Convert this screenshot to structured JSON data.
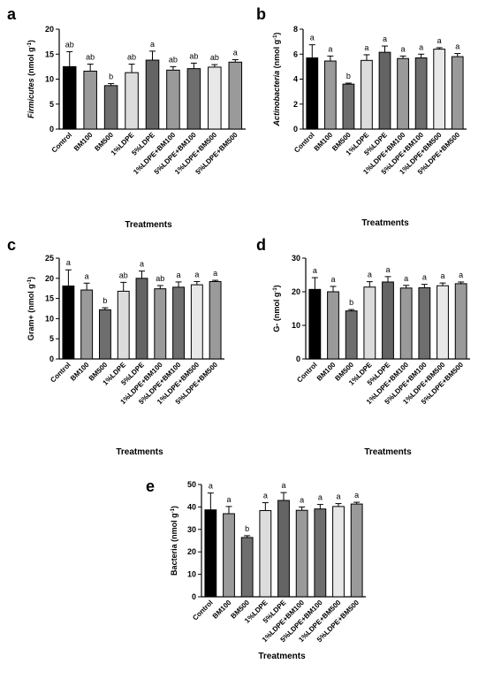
{
  "categories": [
    "Control",
    "BM100",
    "BM500",
    "1%LDPE",
    "5%LDPE",
    "1%LDPE+BM100",
    "5%LDPE+BM100",
    "1%LDPE+BM500",
    "5%LDPE+BM500"
  ],
  "bar_colors": [
    "#000000",
    "#9a9a9a",
    "#6e6e6e",
    "#dcdcdc",
    "#646464",
    "#9a9a9a",
    "#6e6e6e",
    "#e8e8e8",
    "#9a9a9a"
  ],
  "chart_data": [
    {
      "type": "bar",
      "panel": "a",
      "ylabel_italic": "Firmicutes",
      "ylabel_rest": " (nmol g",
      "ylabel_sup": "-1",
      "ylabel_end": ")",
      "xlabel": "Treatments",
      "ylim": [
        0,
        20
      ],
      "yticks": [
        0,
        5,
        10,
        15,
        20
      ],
      "values": [
        12.5,
        11.6,
        8.7,
        11.3,
        13.8,
        11.8,
        12.1,
        12.4,
        13.4
      ],
      "errors": [
        3.0,
        1.4,
        0.4,
        1.7,
        1.8,
        0.7,
        1.1,
        0.5,
        0.5
      ],
      "letters": [
        "ab",
        "ab",
        "b",
        "ab",
        "a",
        "ab",
        "ab",
        "ab",
        "a"
      ]
    },
    {
      "type": "bar",
      "panel": "b",
      "ylabel_italic": "Actinobacteria",
      "ylabel_rest": " (nmol g",
      "ylabel_sup": "-1",
      "ylabel_end": ")",
      "xlabel": "Treatments",
      "ylim": [
        0,
        8
      ],
      "yticks": [
        0,
        2,
        4,
        6,
        8
      ],
      "values": [
        5.7,
        5.45,
        3.6,
        5.5,
        6.15,
        5.65,
        5.7,
        6.4,
        5.8
      ],
      "errors": [
        1.05,
        0.4,
        0.08,
        0.45,
        0.5,
        0.2,
        0.3,
        0.12,
        0.25
      ],
      "letters": [
        "a",
        "a",
        "b",
        "a",
        "a",
        "a",
        "a",
        "a",
        "a"
      ]
    },
    {
      "type": "bar",
      "panel": "c",
      "ylabel_italic": "",
      "ylabel_rest": "Gram+ (nmol g",
      "ylabel_sup": "-1",
      "ylabel_end": ")",
      "xlabel": "Treatments",
      "ylim": [
        0,
        25
      ],
      "yticks": [
        0,
        5,
        10,
        15,
        20,
        25
      ],
      "values": [
        18.1,
        17.1,
        12.2,
        16.8,
        20.0,
        17.4,
        17.8,
        18.4,
        19.2
      ],
      "errors": [
        4.0,
        1.7,
        0.5,
        2.2,
        1.8,
        0.8,
        1.3,
        0.8,
        0.3
      ],
      "letters": [
        "a",
        "a",
        "b",
        "ab",
        "a",
        "ab",
        "a",
        "a",
        "a"
      ]
    },
    {
      "type": "bar",
      "panel": "d",
      "ylabel_italic": "",
      "ylabel_rest": "G- (nmol g",
      "ylabel_sup": "-1",
      "ylabel_end": ")",
      "xlabel": "Treatments",
      "ylim": [
        0,
        30
      ],
      "yticks": [
        0,
        10,
        20,
        30
      ],
      "values": [
        20.7,
        20.0,
        14.3,
        21.4,
        22.9,
        21.1,
        21.2,
        21.8,
        22.4
      ],
      "errors": [
        3.5,
        1.6,
        0.4,
        1.6,
        1.6,
        0.8,
        1.0,
        0.8,
        0.5
      ],
      "letters": [
        "a",
        "a",
        "b",
        "a",
        "a",
        "a",
        "a",
        "a",
        "a"
      ]
    },
    {
      "type": "bar",
      "panel": "e",
      "ylabel_italic": "",
      "ylabel_rest": "Bacteria (nmol g",
      "ylabel_sup": "-1",
      "ylabel_end": ")",
      "xlabel": "Treatments",
      "ylim": [
        0,
        50
      ],
      "yticks": [
        0,
        10,
        20,
        30,
        40,
        50
      ],
      "values": [
        38.7,
        37.0,
        26.4,
        38.4,
        42.9,
        38.5,
        39.1,
        40.2,
        41.3
      ],
      "errors": [
        7.5,
        3.2,
        0.8,
        3.5,
        3.5,
        1.5,
        2.0,
        1.3,
        0.8
      ],
      "letters": [
        "a",
        "a",
        "b",
        "a",
        "a",
        "a",
        "a",
        "a",
        "a"
      ]
    }
  ]
}
